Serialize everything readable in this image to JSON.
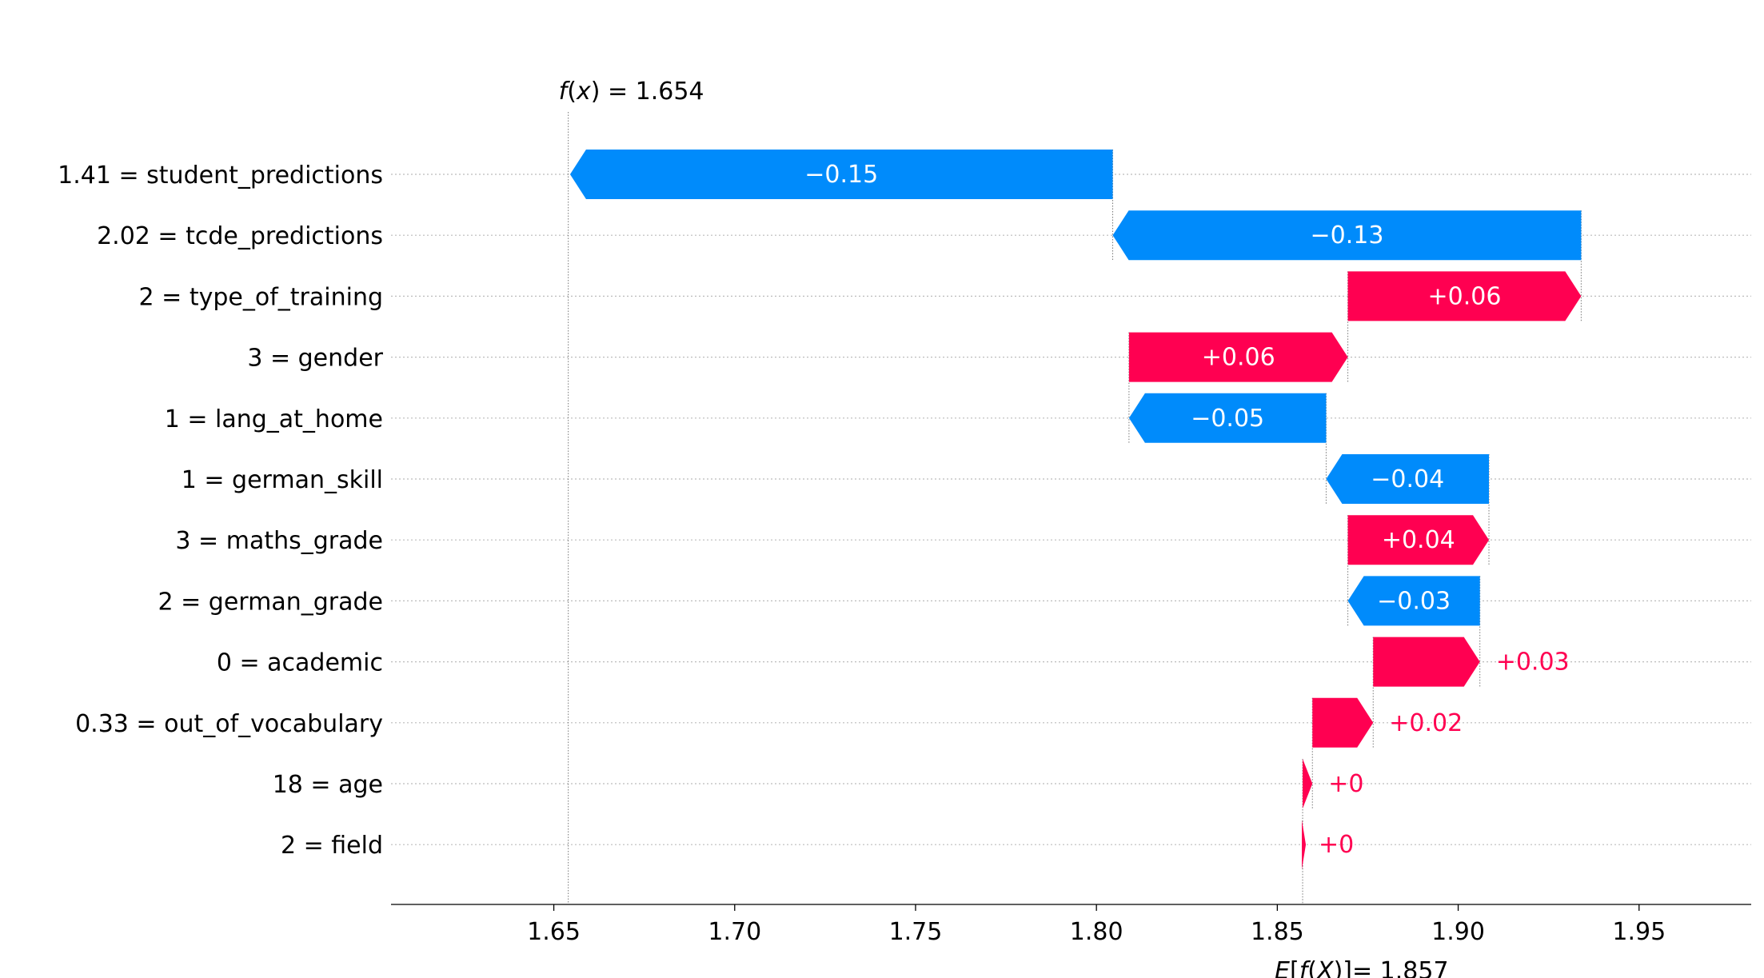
{
  "chart_data": {
    "type": "waterfall",
    "base_value": 1.857,
    "output_value": 1.654,
    "base_label": "E[f(X)]= 1.857",
    "output_label": "f(x) = 1.654",
    "xlim": [
      1.605,
      1.981
    ],
    "xticks": [
      "1.65",
      "1.70",
      "1.75",
      "1.80",
      "1.85",
      "1.90",
      "1.95"
    ],
    "xtick_values": [
      1.65,
      1.7,
      1.75,
      1.8,
      1.85,
      1.9,
      1.95
    ],
    "grid": "dotted horizontal",
    "colors": {
      "positive": "#ff0051",
      "negative": "#008bfb",
      "text": "#000000"
    },
    "features": [
      {
        "label": "1.41 = student_predictions",
        "value": -0.15,
        "text": "−0.15",
        "start": 1.8045,
        "end": 1.6545
      },
      {
        "label": "2.02 = tcde_predictions",
        "value": -0.13,
        "text": "−0.13",
        "start": 1.934,
        "end": 1.8045
      },
      {
        "label": "2 = type_of_training",
        "value": 0.06,
        "text": "+0.06",
        "start": 1.8695,
        "end": 1.934
      },
      {
        "label": "3 = gender",
        "value": 0.06,
        "text": "+0.06",
        "start": 1.809,
        "end": 1.8695
      },
      {
        "label": "1 = lang_at_home",
        "value": -0.05,
        "text": "−0.05",
        "start": 1.8635,
        "end": 1.809
      },
      {
        "label": "1 = german_skill",
        "value": -0.04,
        "text": "−0.04",
        "start": 1.9085,
        "end": 1.8635
      },
      {
        "label": "3 = maths_grade",
        "value": 0.04,
        "text": "+0.04",
        "start": 1.8695,
        "end": 1.9085
      },
      {
        "label": "2 = german_grade",
        "value": -0.03,
        "text": "−0.03",
        "start": 1.906,
        "end": 1.8695
      },
      {
        "label": "0 = academic",
        "value": 0.03,
        "text": "+0.03",
        "start": 1.8765,
        "end": 1.906
      },
      {
        "label": "0.33 = out_of_vocabulary",
        "value": 0.02,
        "text": "+0.02",
        "start": 1.8597,
        "end": 1.8765
      },
      {
        "label": "18 = age",
        "value": 0.0,
        "text": "+0",
        "start": 1.857,
        "end": 1.8597
      },
      {
        "label": "2 = field",
        "value": 0.0,
        "text": "+0",
        "start": 1.857,
        "end": 1.857
      }
    ]
  }
}
